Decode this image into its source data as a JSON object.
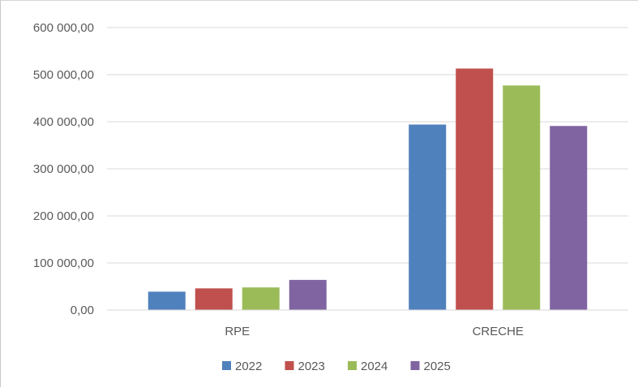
{
  "chart_data": {
    "type": "bar",
    "title": "",
    "xlabel": "",
    "ylabel": "",
    "categories": [
      "RPE",
      "CRECHE"
    ],
    "series": [
      {
        "name": "2022",
        "color": "#4F81BD",
        "values": [
          39000,
          394000
        ]
      },
      {
        "name": "2023",
        "color": "#C0504D",
        "values": [
          46000,
          513000
        ]
      },
      {
        "name": "2024",
        "color": "#9BBB59",
        "values": [
          48000,
          477000
        ]
      },
      {
        "name": "2025",
        "color": "#8064A2",
        "values": [
          64000,
          391000
        ]
      }
    ],
    "ylim": [
      0,
      600000
    ],
    "yticks": [
      {
        "value": 0,
        "label": "0,00"
      },
      {
        "value": 100000,
        "label": "100 000,00"
      },
      {
        "value": 200000,
        "label": "200 000,00"
      },
      {
        "value": 300000,
        "label": "300 000,00"
      },
      {
        "value": 400000,
        "label": "400 000,00"
      },
      {
        "value": 500000,
        "label": "500 000,00"
      },
      {
        "value": 600000,
        "label": "600 000,00"
      }
    ],
    "grid": true,
    "legend": "bottom"
  }
}
